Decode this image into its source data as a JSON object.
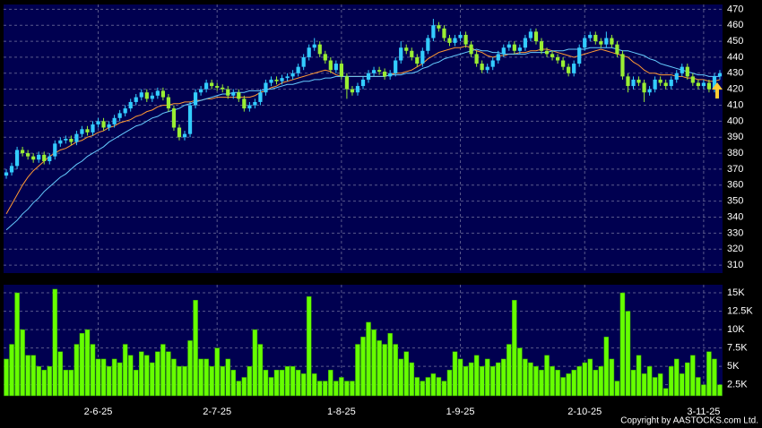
{
  "chart_data": {
    "type": "candlestick",
    "copyright": "Copyright by AASTOCKS.com Ltd.",
    "categories": [
      null,
      null,
      null,
      null,
      null,
      null,
      null,
      null,
      null,
      null,
      null,
      null,
      null,
      null,
      null,
      null,
      null,
      "2-6-25",
      null,
      null,
      null,
      null,
      null,
      null,
      null,
      null,
      null,
      null,
      null,
      null,
      null,
      null,
      null,
      null,
      null,
      null,
      null,
      null,
      null,
      "2-7-25",
      null,
      null,
      null,
      null,
      null,
      null,
      null,
      null,
      null,
      null,
      null,
      null,
      null,
      null,
      null,
      null,
      null,
      null,
      null,
      null,
      null,
      null,
      "1-8-25",
      null,
      null,
      null,
      null,
      null,
      null,
      null,
      null,
      null,
      null,
      null,
      null,
      null,
      null,
      null,
      null,
      null,
      null,
      null,
      null,
      null,
      "1-9-25",
      null,
      null,
      null,
      null,
      null,
      null,
      null,
      null,
      null,
      null,
      null,
      null,
      null,
      null,
      null,
      null,
      null,
      null,
      null,
      null,
      null,
      null,
      "2-10-25",
      null,
      null,
      null,
      null,
      null,
      null,
      null,
      null,
      null,
      null,
      null,
      null,
      null,
      null,
      null,
      null,
      null,
      null,
      null,
      null,
      null,
      "3-11-25",
      null,
      null,
      null
    ],
    "open": [
      366,
      368,
      372,
      382,
      380,
      378,
      376,
      379,
      375,
      378,
      386,
      388,
      389,
      387,
      392,
      395,
      393,
      398,
      400,
      396,
      398,
      402,
      405,
      408,
      412,
      415,
      418,
      414,
      416,
      419,
      415,
      408,
      396,
      390,
      392,
      410,
      418,
      420,
      424,
      422,
      421,
      420,
      416,
      418,
      414,
      408,
      410,
      412,
      418,
      424,
      426,
      425,
      427,
      428,
      430,
      434,
      440,
      446,
      448,
      442,
      438,
      432,
      436,
      428,
      420,
      418,
      422,
      426,
      430,
      432,
      431,
      428,
      430,
      438,
      446,
      444,
      440,
      436,
      444,
      452,
      460,
      458,
      452,
      449,
      452,
      454,
      448,
      442,
      436,
      432,
      434,
      438,
      442,
      446,
      448,
      444,
      446,
      452,
      456,
      450,
      444,
      442,
      440,
      438,
      434,
      430,
      436,
      446,
      452,
      454,
      450,
      448,
      452,
      448,
      442,
      428,
      422,
      426,
      424,
      418,
      420,
      426,
      424,
      422,
      426,
      430,
      434,
      428,
      424,
      422,
      424,
      420,
      428
    ],
    "high": [
      370,
      374,
      384,
      384,
      382,
      380,
      381,
      381,
      380,
      388,
      390,
      391,
      391,
      394,
      397,
      397,
      400,
      402,
      402,
      400,
      404,
      407,
      410,
      414,
      417,
      420,
      420,
      418,
      421,
      421,
      417,
      410,
      398,
      394,
      412,
      420,
      422,
      426,
      426,
      424,
      423,
      422,
      420,
      420,
      416,
      412,
      414,
      420,
      426,
      428,
      428,
      429,
      430,
      432,
      436,
      442,
      448,
      452,
      450,
      444,
      440,
      438,
      438,
      430,
      422,
      424,
      428,
      432,
      434,
      434,
      433,
      432,
      440,
      450,
      448,
      446,
      442,
      446,
      454,
      464,
      462,
      460,
      454,
      454,
      456,
      456,
      450,
      444,
      438,
      436,
      440,
      444,
      448,
      450,
      450,
      448,
      454,
      458,
      458,
      452,
      446,
      444,
      442,
      440,
      436,
      438,
      448,
      454,
      456,
      456,
      452,
      456,
      454,
      450,
      444,
      430,
      428,
      428,
      426,
      422,
      428,
      428,
      426,
      428,
      432,
      436,
      436,
      430,
      426,
      426,
      426,
      430,
      432
    ],
    "low": [
      364,
      366,
      370,
      378,
      376,
      374,
      374,
      373,
      373,
      376,
      384,
      386,
      385,
      385,
      390,
      391,
      391,
      396,
      394,
      394,
      396,
      400,
      403,
      406,
      410,
      413,
      412,
      412,
      414,
      413,
      406,
      394,
      388,
      388,
      390,
      408,
      416,
      418,
      420,
      419,
      418,
      414,
      414,
      412,
      406,
      406,
      408,
      410,
      416,
      422,
      423,
      423,
      425,
      426,
      428,
      432,
      438,
      444,
      440,
      436,
      430,
      430,
      426,
      414,
      416,
      416,
      420,
      424,
      428,
      429,
      426,
      426,
      428,
      436,
      442,
      438,
      434,
      434,
      442,
      450,
      456,
      450,
      447,
      447,
      450,
      446,
      440,
      434,
      430,
      430,
      432,
      436,
      440,
      444,
      442,
      442,
      444,
      450,
      448,
      442,
      440,
      438,
      436,
      432,
      428,
      428,
      434,
      444,
      450,
      448,
      446,
      446,
      446,
      440,
      426,
      418,
      420,
      422,
      412,
      416,
      418,
      422,
      420,
      420,
      424,
      428,
      426,
      422,
      420,
      420,
      418,
      418,
      426
    ],
    "close": [
      368,
      372,
      382,
      380,
      378,
      376,
      379,
      375,
      378,
      386,
      388,
      389,
      387,
      392,
      395,
      393,
      398,
      400,
      396,
      398,
      402,
      405,
      408,
      412,
      415,
      418,
      414,
      416,
      419,
      415,
      408,
      396,
      390,
      392,
      410,
      418,
      420,
      424,
      422,
      421,
      420,
      416,
      418,
      414,
      408,
      410,
      412,
      418,
      424,
      426,
      425,
      427,
      428,
      430,
      434,
      440,
      446,
      448,
      442,
      438,
      432,
      436,
      428,
      420,
      418,
      422,
      426,
      430,
      432,
      431,
      428,
      430,
      438,
      446,
      444,
      440,
      436,
      444,
      452,
      460,
      458,
      452,
      449,
      452,
      454,
      448,
      442,
      436,
      432,
      434,
      438,
      442,
      446,
      448,
      444,
      446,
      452,
      456,
      450,
      444,
      442,
      440,
      438,
      434,
      430,
      436,
      446,
      452,
      454,
      450,
      448,
      452,
      448,
      442,
      428,
      422,
      426,
      424,
      418,
      420,
      426,
      424,
      422,
      426,
      430,
      434,
      428,
      424,
      422,
      424,
      420,
      428,
      430
    ],
    "up_color": "#33ccff",
    "down_color": "#99ee33",
    "ma": [
      {
        "color": "#ff9933",
        "values": [
          342,
          348,
          354,
          360,
          365,
          369,
          372,
          375,
          378,
          380,
          382,
          383,
          385,
          387,
          388,
          390,
          391,
          393,
          394,
          396,
          397,
          399,
          400,
          401,
          403,
          404,
          406,
          407,
          409,
          410,
          410,
          411,
          411,
          412,
          412,
          413,
          413,
          414,
          414,
          415,
          415,
          415,
          415,
          415,
          415,
          415,
          416,
          418,
          419,
          421,
          422,
          424,
          425,
          426,
          427,
          428,
          429,
          430,
          431,
          432,
          431,
          429,
          428,
          428,
          428,
          428,
          428,
          428,
          428,
          428,
          428,
          429,
          430,
          430,
          431,
          432,
          434,
          436,
          439,
          441,
          443,
          444,
          445,
          446,
          446,
          447,
          446,
          444,
          443,
          441,
          440,
          441,
          441,
          442,
          442,
          443,
          443,
          444,
          444,
          445,
          445,
          444,
          443,
          442,
          441,
          440,
          441,
          442,
          443,
          444,
          445,
          444,
          443,
          442,
          441,
          440,
          437,
          435,
          432,
          430,
          430,
          429,
          429,
          429,
          428,
          428,
          427,
          427,
          426,
          426,
          425,
          425,
          426
        ]
      },
      {
        "color": "#66ccff",
        "values": [
          332,
          335,
          338,
          342,
          345,
          349,
          352,
          356,
          359,
          362,
          365,
          367,
          370,
          373,
          375,
          378,
          380,
          382,
          384,
          387,
          389,
          391,
          393,
          395,
          397,
          398,
          400,
          402,
          403,
          405,
          406,
          407,
          408,
          410,
          411,
          412,
          413,
          414,
          415,
          416,
          417,
          417,
          418,
          418,
          418,
          419,
          419,
          419,
          420,
          420,
          421,
          422,
          423,
          423,
          424,
          425,
          425,
          426,
          426,
          427,
          427,
          428,
          428,
          428,
          428,
          428,
          428,
          428,
          428,
          428,
          428,
          429,
          429,
          429,
          430,
          430,
          431,
          433,
          434,
          436,
          437,
          439,
          440,
          441,
          442,
          443,
          444,
          445,
          444,
          444,
          443,
          443,
          442,
          442,
          442,
          442,
          442,
          443,
          443,
          443,
          443,
          444,
          444,
          444,
          445,
          445,
          445,
          445,
          446,
          446,
          446,
          446,
          446,
          445,
          444,
          444,
          443,
          442,
          441,
          439,
          438,
          436,
          435,
          434,
          433,
          432,
          431,
          430,
          429,
          429,
          428,
          428,
          428
        ]
      }
    ],
    "ylim": [
      305,
      473
    ],
    "yticks": [
      310,
      320,
      330,
      340,
      350,
      360,
      370,
      380,
      390,
      400,
      410,
      420,
      430,
      440,
      450,
      460,
      470
    ],
    "volume": {
      "color": "#66ff00",
      "values": [
        6000,
        8000,
        15000,
        10000,
        6500,
        6500,
        5000,
        4500,
        5000,
        15500,
        7000,
        4500,
        4500,
        8000,
        9500,
        10000,
        8000,
        6000,
        6000,
        5000,
        6000,
        5500,
        8000,
        6500,
        4500,
        7000,
        6500,
        5500,
        7000,
        8000,
        7000,
        6000,
        5000,
        5000,
        8500,
        14000,
        6000,
        6000,
        5000,
        7500,
        5000,
        6000,
        4500,
        3000,
        3500,
        5000,
        10000,
        8000,
        4500,
        3500,
        4500,
        4500,
        5000,
        5000,
        4500,
        4000,
        14500,
        4000,
        3000,
        3000,
        4500,
        3000,
        3500,
        3000,
        3000,
        8000,
        9000,
        11000,
        10000,
        8500,
        8000,
        9500,
        8000,
        6000,
        7000,
        5500,
        3500,
        3000,
        3500,
        4000,
        3500,
        3000,
        4500,
        7000,
        6000,
        5000,
        5500,
        6500,
        5000,
        6000,
        5000,
        5500,
        6000,
        8000,
        14000,
        7500,
        6000,
        5500,
        5000,
        4500,
        6500,
        5000,
        4500,
        3500,
        4000,
        4500,
        5000,
        5500,
        6000,
        4500,
        5000,
        9000,
        6000,
        3000,
        15000,
        12500,
        4500,
        6500,
        4000,
        5000,
        3500,
        4000,
        2000,
        5000,
        6000,
        4000,
        5500,
        6500,
        3500,
        2500,
        7000,
        6000,
        2500
      ],
      "ylim": [
        1000,
        16100
      ],
      "yticks": [
        {
          "value": 2500,
          "label": "2.5K"
        },
        {
          "value": 5000,
          "label": "5K"
        },
        {
          "value": 7500,
          "label": "7.5K"
        },
        {
          "value": 10000,
          "label": "10K"
        },
        {
          "value": 12500,
          "label": "12.5K"
        },
        {
          "value": 15000,
          "label": "15K"
        }
      ]
    },
    "grid": true
  }
}
